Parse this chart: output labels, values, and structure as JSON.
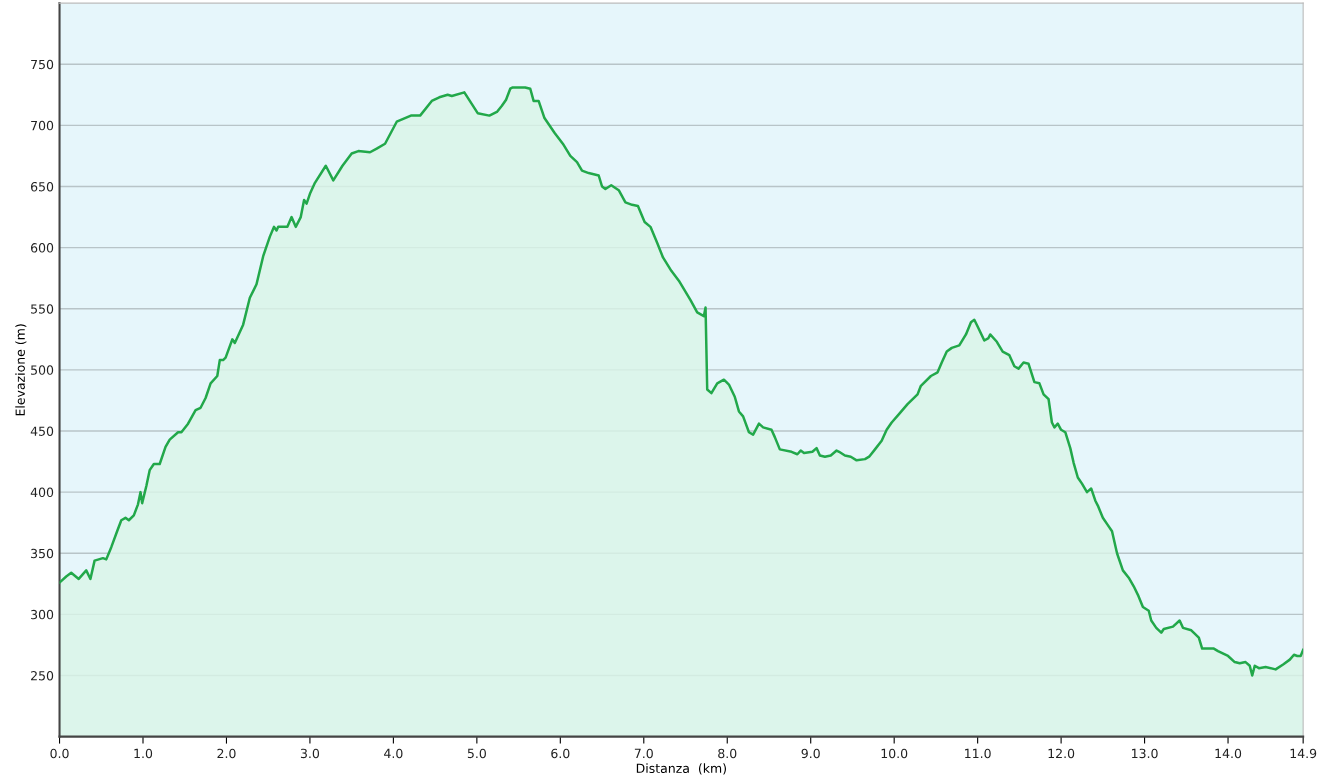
{
  "chart_data": {
    "type": "area",
    "xlabel": "Distanza  (km)",
    "ylabel": "Elevazione (m)",
    "xlim": [
      0,
      14.9
    ],
    "ylim": [
      200,
      800
    ],
    "xticks": [
      {
        "value": 0,
        "label": "0.0"
      },
      {
        "value": 1,
        "label": "1.0"
      },
      {
        "value": 2,
        "label": "2.0"
      },
      {
        "value": 3,
        "label": "3.0"
      },
      {
        "value": 4,
        "label": "4.0"
      },
      {
        "value": 5,
        "label": "5.0"
      },
      {
        "value": 6,
        "label": "6.0"
      },
      {
        "value": 7,
        "label": "7.0"
      },
      {
        "value": 8,
        "label": "8.0"
      },
      {
        "value": 9,
        "label": "9.0"
      },
      {
        "value": 10,
        "label": "10.0"
      },
      {
        "value": 11,
        "label": "11.0"
      },
      {
        "value": 12,
        "label": "12.0"
      },
      {
        "value": 13,
        "label": "13.0"
      },
      {
        "value": 14,
        "label": "14.0"
      },
      {
        "value": 14.9,
        "label": "14.9"
      }
    ],
    "yticks": [
      250,
      300,
      350,
      400,
      450,
      500,
      550,
      600,
      650,
      700,
      750
    ],
    "grid": "y",
    "line_style": "solid",
    "x": [
      0,
      0.08,
      0.14,
      0.23,
      0.32,
      0.37,
      0.42,
      0.52,
      0.56,
      0.62,
      0.69,
      0.74,
      0.79,
      0.83,
      0.89,
      0.94,
      0.97,
      0.99,
      1.04,
      1.08,
      1.13,
      1.2,
      1.27,
      1.32,
      1.42,
      1.46,
      1.54,
      1.63,
      1.69,
      1.75,
      1.81,
      1.89,
      1.92,
      1.96,
      1.99,
      2.07,
      2.1,
      2.2,
      2.28,
      2.36,
      2.44,
      2.52,
      2.57,
      2.6,
      2.62,
      2.73,
      2.78,
      2.83,
      2.89,
      2.93,
      2.96,
      3.0,
      3.06,
      3.19,
      3.28,
      3.39,
      3.5,
      3.58,
      3.72,
      3.8,
      3.9,
      4.04,
      4.21,
      4.32,
      4.46,
      4.55,
      4.65,
      4.7,
      4.85,
      5.01,
      5.15,
      5.24,
      5.3,
      5.35,
      5.4,
      5.43,
      5.58,
      5.64,
      5.68,
      5.74,
      5.81,
      5.93,
      6.03,
      6.12,
      6.2,
      6.26,
      6.34,
      6.46,
      6.5,
      6.54,
      6.61,
      6.7,
      6.78,
      6.86,
      6.93,
      7.01,
      7.08,
      7.16,
      7.23,
      7.33,
      7.42,
      7.56,
      7.64,
      7.72,
      7.74,
      7.76,
      7.81,
      7.88,
      7.96,
      8.02,
      8.09,
      8.14,
      8.19,
      8.26,
      8.31,
      8.38,
      8.43,
      8.53,
      8.57,
      8.63,
      8.77,
      8.84,
      8.88,
      8.92,
      9.02,
      9.07,
      9.11,
      9.17,
      9.24,
      9.31,
      9.34,
      9.41,
      9.48,
      9.55,
      9.65,
      9.7,
      9.77,
      9.85,
      9.91,
      9.97,
      10.06,
      10.16,
      10.28,
      10.32,
      10.44,
      10.52,
      10.57,
      10.63,
      10.69,
      10.78,
      10.86,
      10.92,
      10.96,
      11.01,
      11.08,
      11.13,
      11.15,
      11.23,
      11.3,
      11.38,
      11.44,
      11.49,
      11.55,
      11.61,
      11.68,
      11.74,
      11.79,
      11.85,
      11.89,
      11.92,
      11.96,
      12.0,
      12.05,
      12.11,
      12.15,
      12.2,
      12.25,
      12.31,
      12.36,
      12.41,
      12.44,
      12.5,
      12.56,
      12.61,
      12.67,
      12.74,
      12.81,
      12.87,
      12.92,
      12.98,
      13.05,
      13.08,
      13.14,
      13.2,
      13.23,
      13.34,
      13.42,
      13.46,
      13.56,
      13.65,
      13.69,
      13.83,
      13.88,
      14.0,
      14.08,
      14.14,
      14.21,
      14.26,
      14.29,
      14.32,
      14.37,
      14.45,
      14.57,
      14.66,
      14.74,
      14.79,
      14.83,
      14.87,
      14.9
    ],
    "series": [
      {
        "color": "#22a84a",
        "values": [
          326,
          331,
          334,
          329,
          336,
          329,
          344,
          346,
          345,
          355,
          368,
          377,
          379,
          377,
          381,
          390,
          400,
          391,
          405,
          418,
          423,
          423,
          437,
          443,
          449,
          449,
          456,
          467,
          469,
          477,
          489,
          495,
          508,
          508,
          510,
          525,
          522,
          537,
          559,
          570,
          593,
          609,
          617,
          614,
          617,
          617,
          625,
          617,
          625,
          639,
          636,
          644,
          653,
          667,
          655,
          667,
          677,
          679,
          678,
          681,
          685,
          703,
          708,
          708,
          720,
          723,
          725,
          724,
          727,
          710,
          708,
          711,
          716,
          721,
          730,
          731,
          731,
          730,
          720,
          720,
          706,
          694,
          685,
          675,
          670,
          663,
          661,
          659,
          650,
          648,
          651,
          647,
          637,
          635,
          634,
          621,
          617,
          604,
          592,
          581,
          573,
          557,
          547,
          544,
          551,
          484,
          481,
          489,
          492,
          488,
          478,
          466,
          462,
          449,
          447,
          456,
          453,
          451,
          445,
          435,
          433,
          431,
          434,
          432,
          433,
          436,
          430,
          429,
          430,
          434,
          433,
          430,
          429,
          426,
          427,
          429,
          435,
          442,
          451,
          457,
          464,
          472,
          480,
          487,
          495,
          498,
          506,
          515,
          518,
          520,
          529,
          539,
          541,
          534,
          524,
          526,
          529,
          523,
          515,
          512,
          503,
          501,
          506,
          505,
          490,
          489,
          480,
          476,
          457,
          453,
          456,
          451,
          449,
          436,
          424,
          412,
          407,
          400,
          403,
          393,
          389,
          379,
          373,
          368,
          350,
          336,
          330,
          323,
          316,
          306,
          303,
          295,
          289,
          285,
          288,
          290,
          295,
          289,
          287,
          281,
          272,
          272,
          270,
          266,
          261,
          260,
          261,
          258,
          250,
          258,
          256,
          257,
          255,
          259,
          263,
          267,
          266,
          266,
          271
        ]
      }
    ]
  }
}
